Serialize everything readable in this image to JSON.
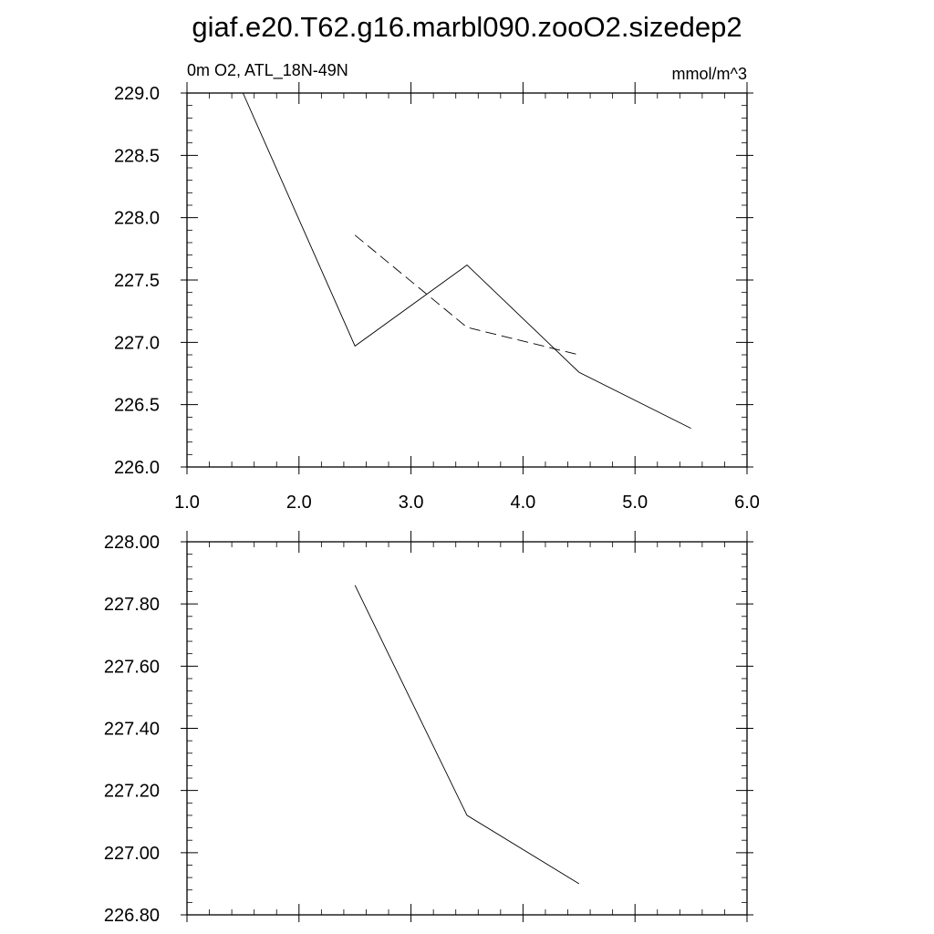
{
  "page_title": "giaf.e20.T62.g16.marbl090.zooO2.sizedep2",
  "chart_data": [
    {
      "type": "line",
      "left_label": "0m O2, ATL_18N-49N",
      "right_label": "mmol/m^3",
      "xlabel": "",
      "ylabel": "",
      "xlim": [
        1.0,
        6.0
      ],
      "ylim": [
        226.0,
        229.0
      ],
      "x_ticks": [
        1.0,
        2.0,
        3.0,
        4.0,
        5.0,
        6.0
      ],
      "x_tick_labels": [
        "1.0",
        "2.0",
        "3.0",
        "4.0",
        "5.0",
        "6.0"
      ],
      "y_ticks": [
        226.0,
        226.5,
        227.0,
        227.5,
        228.0,
        228.5,
        229.0
      ],
      "y_tick_labels": [
        "226.0",
        "226.5",
        "227.0",
        "227.5",
        "228.0",
        "228.5",
        "229.0"
      ],
      "grid": false,
      "series": [
        {
          "style": "solid",
          "color": "#000000",
          "x": [
            1.5,
            2.5,
            3.5,
            4.5,
            5.5
          ],
          "y": [
            229.0,
            226.97,
            227.62,
            226.76,
            226.31
          ]
        },
        {
          "style": "dashed",
          "color": "#000000",
          "x": [
            2.5,
            3.5,
            4.5
          ],
          "y": [
            227.86,
            227.12,
            226.9
          ]
        }
      ]
    },
    {
      "type": "line",
      "xlabel": "",
      "ylabel": "",
      "xlim": [
        1.0,
        6.0
      ],
      "ylim": [
        226.8,
        228.0
      ],
      "x_ticks": [
        1.0,
        2.0,
        3.0,
        4.0,
        5.0,
        6.0
      ],
      "x_tick_labels": [],
      "y_ticks": [
        226.8,
        227.0,
        227.2,
        227.4,
        227.6,
        227.8,
        228.0
      ],
      "y_tick_labels": [
        "226.80",
        "227.00",
        "227.20",
        "227.40",
        "227.60",
        "227.80",
        "228.00"
      ],
      "grid": false,
      "series": [
        {
          "style": "solid",
          "color": "#000000",
          "x": [
            2.5,
            3.5,
            4.5
          ],
          "y": [
            227.86,
            227.12,
            226.9
          ]
        }
      ]
    }
  ]
}
